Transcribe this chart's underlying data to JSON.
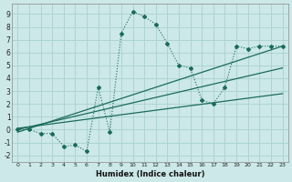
{
  "xlabel": "Humidex (Indice chaleur)",
  "background_color": "#cce8e8",
  "grid_color": "#aacfcf",
  "line_color": "#1a6b5a",
  "xlim": [
    -0.5,
    23.5
  ],
  "ylim": [
    -2.5,
    9.8
  ],
  "xticks": [
    0,
    1,
    2,
    3,
    4,
    5,
    6,
    7,
    8,
    9,
    10,
    11,
    12,
    13,
    14,
    15,
    16,
    17,
    18,
    19,
    20,
    21,
    22,
    23
  ],
  "yticks": [
    -2,
    -1,
    0,
    1,
    2,
    3,
    4,
    5,
    6,
    7,
    8,
    9
  ],
  "line1_x": [
    0,
    1,
    2,
    3,
    4,
    5,
    6,
    7,
    8,
    9,
    10,
    11,
    12,
    13,
    14,
    15,
    16,
    17,
    18,
    19,
    20,
    21,
    22,
    23
  ],
  "line1_y": [
    0.0,
    0.0,
    -0.3,
    -0.3,
    -1.3,
    -1.2,
    -1.7,
    3.3,
    -0.2,
    7.5,
    9.2,
    8.8,
    8.2,
    6.7,
    5.0,
    4.8,
    2.3,
    2.0,
    3.3,
    6.5,
    6.3,
    6.5,
    6.5,
    6.5
  ],
  "line2_x": [
    0,
    23
  ],
  "line2_y": [
    -0.2,
    6.5
  ],
  "line3_x": [
    0,
    23
  ],
  "line3_y": [
    0.0,
    4.8
  ],
  "line4_x": [
    0,
    23
  ],
  "line4_y": [
    0.1,
    2.8
  ]
}
